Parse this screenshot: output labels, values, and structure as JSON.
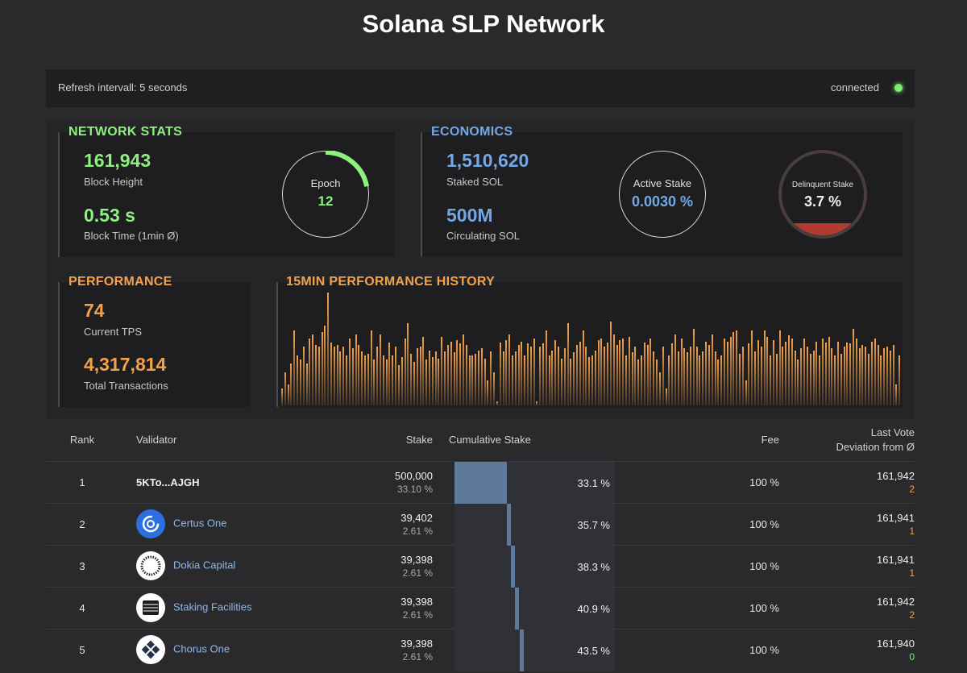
{
  "header": {
    "title": "Solana SLP Network"
  },
  "status": {
    "refresh": "Refresh intervall: 5 seconds",
    "connection": "connected"
  },
  "network_stats": {
    "title": "NETWORK STATS",
    "block_height": "161,943",
    "block_height_label": "Block Height",
    "block_time": "0.53 s",
    "block_time_label": "Block Time (1min Ø)",
    "epoch_label": "Epoch",
    "epoch_value": "12",
    "epoch_progress": 0.22
  },
  "economics": {
    "title": "ECONOMICS",
    "staked": "1,510,620",
    "staked_label": "Staked SOL",
    "circulating": "500M",
    "circulating_label": "Circulating SOL",
    "active_label": "Active Stake",
    "active_value": "0.0030 %",
    "delinquent_label": "Delinquent Stake",
    "delinquent_value": "3.7 %",
    "delinquent_fraction": 0.037
  },
  "performance": {
    "title": "PERFORMANCE",
    "tps": "74",
    "tps_label": "Current TPS",
    "total": "4,317,814",
    "total_label": "Total Transactions"
  },
  "history": {
    "title": "15MIN PERFORMANCE HISTORY",
    "values": [
      20,
      40,
      25,
      50,
      90,
      60,
      55,
      70,
      50,
      80,
      85,
      72,
      70,
      88,
      95,
      135,
      75,
      70,
      72,
      65,
      70,
      60,
      80,
      68,
      85,
      72,
      65,
      60,
      62,
      90,
      55,
      70,
      85,
      60,
      55,
      75,
      60,
      70,
      48,
      58,
      80,
      98,
      62,
      52,
      68,
      70,
      82,
      55,
      66,
      58,
      65,
      56,
      82,
      65,
      72,
      76,
      64,
      78,
      74,
      85,
      72,
      60,
      60,
      62,
      66,
      68,
      56,
      30,
      65,
      40,
      5,
      75,
      65,
      78,
      85,
      60,
      65,
      72,
      76,
      60,
      74,
      70,
      80,
      5,
      70,
      74,
      90,
      60,
      66,
      78,
      70,
      56,
      68,
      98,
      56,
      64,
      72,
      76,
      90,
      70,
      58,
      60,
      66,
      78,
      80,
      70,
      75,
      100,
      85,
      72,
      78,
      80,
      60,
      82,
      64,
      70,
      55,
      60,
      75,
      72,
      80,
      65,
      55,
      40,
      70,
      20,
      60,
      74,
      85,
      65,
      80,
      68,
      64,
      70,
      92,
      70,
      60,
      65,
      76,
      72,
      85,
      65,
      55,
      60,
      80,
      76,
      82,
      88,
      90,
      62,
      70,
      30,
      74,
      90,
      65,
      78,
      70,
      90,
      82,
      60,
      78,
      62,
      90,
      70,
      76,
      84,
      80,
      66,
      55,
      68,
      80,
      70,
      62,
      66,
      76,
      60,
      80,
      75,
      82,
      68,
      60,
      76,
      62,
      70,
      75,
      74,
      92,
      80,
      68,
      72,
      70,
      62,
      76,
      80,
      72,
      60,
      68,
      70,
      66,
      72,
      25,
      60
    ],
    "max": 135
  },
  "table": {
    "headers": {
      "rank": "Rank",
      "validator": "Validator",
      "stake": "Stake",
      "cumulative": "Cumulative Stake",
      "fee": "Fee",
      "last_vote": "Last Vote",
      "deviation": "Deviation from Ø"
    },
    "rows": [
      {
        "rank": "1",
        "name": "5KTo...AJGH",
        "logo": "none",
        "stake": "500,000",
        "stake_pct": "33.10 %",
        "cum": "33.1 %",
        "cum_frac": 0.331,
        "fee": "100 %",
        "vote": "161,942",
        "dev": "2",
        "dev_zero": false
      },
      {
        "rank": "2",
        "name": "Certus One",
        "logo": "certus-one-logo",
        "stake": "39,402",
        "stake_pct": "2.61 %",
        "cum": "35.7 %",
        "cum_frac": 0.357,
        "fee": "100 %",
        "vote": "161,941",
        "dev": "1",
        "dev_zero": false
      },
      {
        "rank": "3",
        "name": "Dokia Capital",
        "logo": "dokia-capital-logo",
        "stake": "39,398",
        "stake_pct": "2.61 %",
        "cum": "38.3 %",
        "cum_frac": 0.383,
        "fee": "100 %",
        "vote": "161,941",
        "dev": "1",
        "dev_zero": false
      },
      {
        "rank": "4",
        "name": "Staking Facilities",
        "logo": "staking-facilities-logo",
        "stake": "39,398",
        "stake_pct": "2.61 %",
        "cum": "40.9 %",
        "cum_frac": 0.409,
        "fee": "100 %",
        "vote": "161,942",
        "dev": "2",
        "dev_zero": false
      },
      {
        "rank": "5",
        "name": "Chorus One",
        "logo": "chorus-one-logo",
        "stake": "39,398",
        "stake_pct": "2.61 %",
        "cum": "43.5 %",
        "cum_frac": 0.435,
        "fee": "100 %",
        "vote": "161,940",
        "dev": "0",
        "dev_zero": true
      }
    ]
  },
  "colors": {
    "green": "#8ef07f",
    "blue": "#74a8e4",
    "orange": "#f3a24c",
    "red": "#b23a2e"
  }
}
